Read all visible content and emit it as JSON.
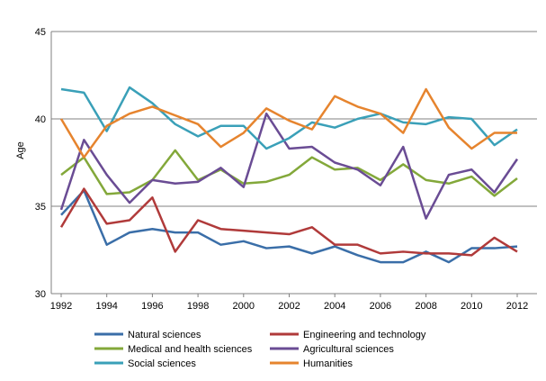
{
  "chart_data": {
    "type": "line",
    "title": "",
    "xlabel": "",
    "ylabel": "Age",
    "ylim": [
      30,
      45
    ],
    "yticks": [
      30,
      35,
      40,
      45
    ],
    "xlim": [
      1992,
      2012
    ],
    "xticks": [
      1992,
      1994,
      1996,
      1998,
      2000,
      2002,
      2004,
      2006,
      2008,
      2010,
      2012
    ],
    "grid": "horizontal",
    "legend": "bottom",
    "x": [
      1992,
      1993,
      1994,
      1995,
      1996,
      1997,
      1998,
      1999,
      2000,
      2001,
      2002,
      2003,
      2004,
      2005,
      2006,
      2007,
      2008,
      2009,
      2010,
      2011,
      2012
    ],
    "series": [
      {
        "name": "Natural sciences",
        "color": "#3a6ea8",
        "values": [
          34.5,
          35.9,
          32.8,
          33.5,
          33.7,
          33.5,
          33.5,
          32.8,
          33.0,
          32.6,
          32.7,
          32.3,
          32.7,
          32.2,
          31.8,
          31.8,
          32.4,
          31.8,
          32.6,
          32.6,
          32.7
        ]
      },
      {
        "name": "Engineering and technology",
        "color": "#b03a3a",
        "values": [
          33.8,
          36.0,
          34.0,
          34.2,
          35.5,
          32.4,
          34.2,
          33.7,
          33.6,
          33.5,
          33.4,
          33.8,
          32.8,
          32.8,
          32.3,
          32.4,
          32.3,
          32.3,
          32.2,
          33.2,
          32.4
        ]
      },
      {
        "name": "Medical and health sciences",
        "color": "#83a83a",
        "values": [
          36.8,
          37.8,
          35.7,
          35.8,
          36.5,
          38.2,
          36.5,
          37.1,
          36.3,
          36.4,
          36.8,
          37.8,
          37.1,
          37.2,
          36.5,
          37.4,
          36.5,
          36.3,
          36.7,
          35.6,
          36.6
        ]
      },
      {
        "name": "Agricultural sciences",
        "color": "#6a4c94",
        "values": [
          34.8,
          38.8,
          36.8,
          35.2,
          36.5,
          36.3,
          36.4,
          37.2,
          36.1,
          40.3,
          38.3,
          38.4,
          37.5,
          37.1,
          36.2,
          38.4,
          34.3,
          36.8,
          37.1,
          35.8,
          37.7
        ]
      },
      {
        "name": "Social sciences",
        "color": "#3aa0b8",
        "values": [
          41.7,
          41.5,
          39.3,
          41.8,
          40.9,
          39.7,
          39.0,
          39.6,
          39.6,
          38.3,
          38.9,
          39.8,
          39.5,
          40.0,
          40.3,
          39.8,
          39.7,
          40.1,
          40.0,
          38.5,
          39.4
        ]
      },
      {
        "name": "Humanities",
        "color": "#e6842e",
        "values": [
          40.0,
          37.8,
          39.6,
          40.3,
          40.7,
          40.2,
          39.7,
          38.4,
          39.2,
          40.6,
          39.9,
          39.4,
          41.3,
          40.7,
          40.3,
          39.2,
          41.7,
          39.5,
          38.3,
          39.2,
          39.2
        ]
      }
    ]
  }
}
